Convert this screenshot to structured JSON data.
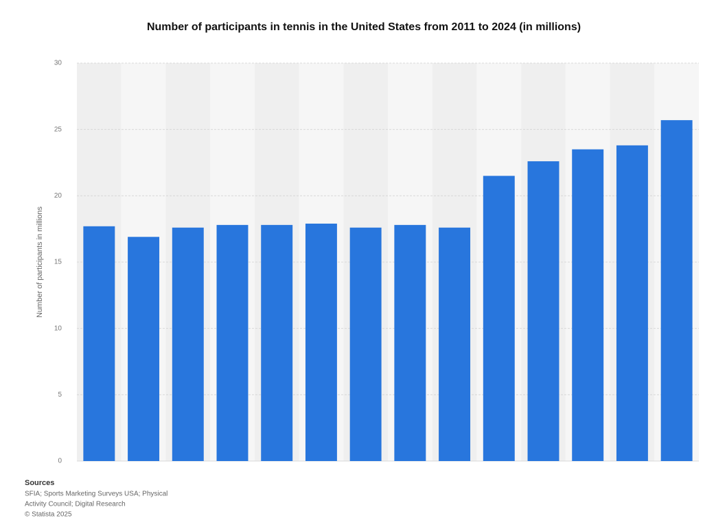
{
  "chart_data": {
    "type": "bar",
    "title": "Number of participants in tennis in the United States from 2011 to 2024 (in millions)",
    "y_label": "Number of participants in millions",
    "values": [
      17.7,
      16.9,
      17.6,
      17.8,
      17.8,
      17.9,
      17.6,
      17.8,
      17.6,
      21.5,
      22.6,
      23.5,
      23.8,
      25.7
    ],
    "color": "#2876dd",
    "ylim": [
      0,
      30
    ],
    "yticks": [
      0,
      5,
      10,
      15,
      20,
      25,
      30
    ],
    "grid": true,
    "source_heading": "Sources",
    "source_lines": [
      "SFIA; Sports Marketing Surveys USA; Physical",
      "Activity Council; Digital Research",
      "© Statista 2025"
    ]
  }
}
